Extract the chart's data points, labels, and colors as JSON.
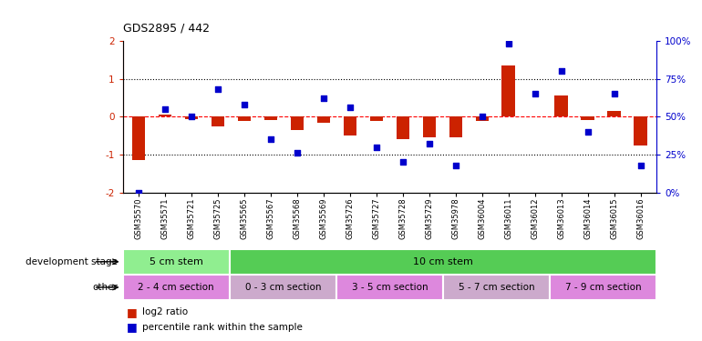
{
  "title": "GDS2895 / 442",
  "samples": [
    "GSM35570",
    "GSM35571",
    "GSM35721",
    "GSM35725",
    "GSM35565",
    "GSM35567",
    "GSM35568",
    "GSM35569",
    "GSM35726",
    "GSM35727",
    "GSM35728",
    "GSM35729",
    "GSM35978",
    "GSM36004",
    "GSM36011",
    "GSM36012",
    "GSM36013",
    "GSM36014",
    "GSM36015",
    "GSM36016"
  ],
  "log2_ratio": [
    -1.15,
    0.05,
    -0.05,
    -0.25,
    -0.1,
    -0.08,
    -0.35,
    -0.15,
    -0.5,
    -0.12,
    -0.6,
    -0.55,
    -0.55,
    -0.1,
    1.35,
    0.0,
    0.55,
    -0.08,
    0.15,
    -0.75
  ],
  "percentile": [
    0,
    55,
    50,
    68,
    58,
    35,
    26,
    62,
    56,
    30,
    20,
    32,
    18,
    50,
    98,
    65,
    80,
    40,
    65,
    18
  ],
  "bar_color": "#cc2200",
  "dot_color": "#0000cc",
  "ylim_left": [
    -2,
    2
  ],
  "ylim_right": [
    0,
    100
  ],
  "yticks_left": [
    -2,
    -1,
    0,
    1,
    2
  ],
  "yticks_right": [
    0,
    25,
    50,
    75,
    100
  ],
  "ytick_labels_right": [
    "0%",
    "25%",
    "50%",
    "75%",
    "100%"
  ],
  "hlines": [
    -1,
    0,
    1
  ],
  "hline_styles": [
    "dotted",
    "dashed",
    "dotted"
  ],
  "hline_colors": [
    "black",
    "red",
    "black"
  ],
  "dev_stage_groups": [
    {
      "label": "5 cm stem",
      "start": 0,
      "end": 4,
      "color": "#90ee90"
    },
    {
      "label": "10 cm stem",
      "start": 4,
      "end": 20,
      "color": "#55cc55"
    }
  ],
  "other_groups": [
    {
      "label": "2 - 4 cm section",
      "start": 0,
      "end": 4,
      "color": "#dd88dd"
    },
    {
      "label": "0 - 3 cm section",
      "start": 4,
      "end": 8,
      "color": "#ccaacc"
    },
    {
      "label": "3 - 5 cm section",
      "start": 8,
      "end": 12,
      "color": "#dd88dd"
    },
    {
      "label": "5 - 7 cm section",
      "start": 12,
      "end": 16,
      "color": "#ccaacc"
    },
    {
      "label": "7 - 9 cm section",
      "start": 16,
      "end": 20,
      "color": "#dd88dd"
    }
  ],
  "background_color": "white",
  "bar_width": 0.5
}
